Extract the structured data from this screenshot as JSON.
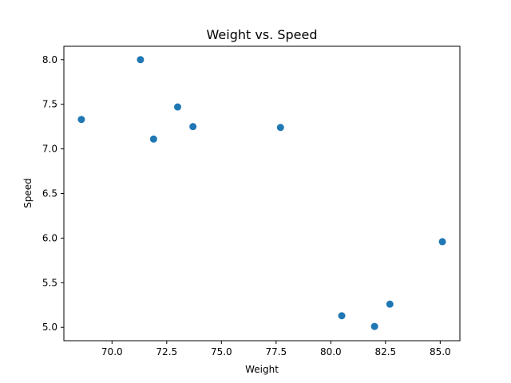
{
  "chart_data": {
    "type": "scatter",
    "title": "Weight vs. Speed",
    "xlabel": "Weight",
    "ylabel": "Speed",
    "xlim": [
      67.8,
      85.9
    ],
    "ylim": [
      4.85,
      8.15
    ],
    "x_ticks": [
      70.0,
      72.5,
      75.0,
      77.5,
      80.0,
      82.5,
      85.0
    ],
    "x_tick_labels": [
      "70.0",
      "72.5",
      "75.0",
      "77.5",
      "80.0",
      "82.5",
      "85.0"
    ],
    "y_ticks": [
      5.0,
      5.5,
      6.0,
      6.5,
      7.0,
      7.5,
      8.0
    ],
    "y_tick_labels": [
      "5.0",
      "5.5",
      "6.0",
      "6.5",
      "7.0",
      "7.5",
      "8.0"
    ],
    "grid": false,
    "marker_color": "#1f77b4",
    "points": [
      {
        "x": 68.6,
        "y": 7.33
      },
      {
        "x": 71.3,
        "y": 8.0
      },
      {
        "x": 71.9,
        "y": 7.11
      },
      {
        "x": 73.0,
        "y": 7.47
      },
      {
        "x": 73.7,
        "y": 7.25
      },
      {
        "x": 77.7,
        "y": 7.24
      },
      {
        "x": 80.5,
        "y": 5.13
      },
      {
        "x": 82.0,
        "y": 5.01
      },
      {
        "x": 82.7,
        "y": 5.26
      },
      {
        "x": 85.1,
        "y": 5.96
      }
    ]
  }
}
